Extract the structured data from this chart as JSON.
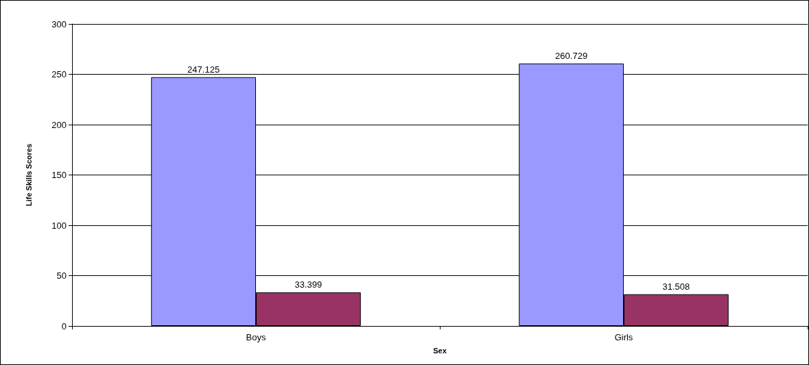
{
  "chart_data": {
    "type": "bar",
    "xlabel": "Sex",
    "ylabel": "Life Skills Scores",
    "categories": [
      "Boys",
      "Girls"
    ],
    "series": [
      {
        "color": "#9999ff",
        "values": [
          247.125,
          260.729
        ]
      },
      {
        "color": "#993366",
        "values": [
          33.399,
          31.508
        ]
      }
    ],
    "ylim": [
      0,
      300
    ],
    "yticks": [
      0,
      50,
      100,
      150,
      200,
      250,
      300
    ],
    "grid": "y",
    "data_labels": true
  }
}
